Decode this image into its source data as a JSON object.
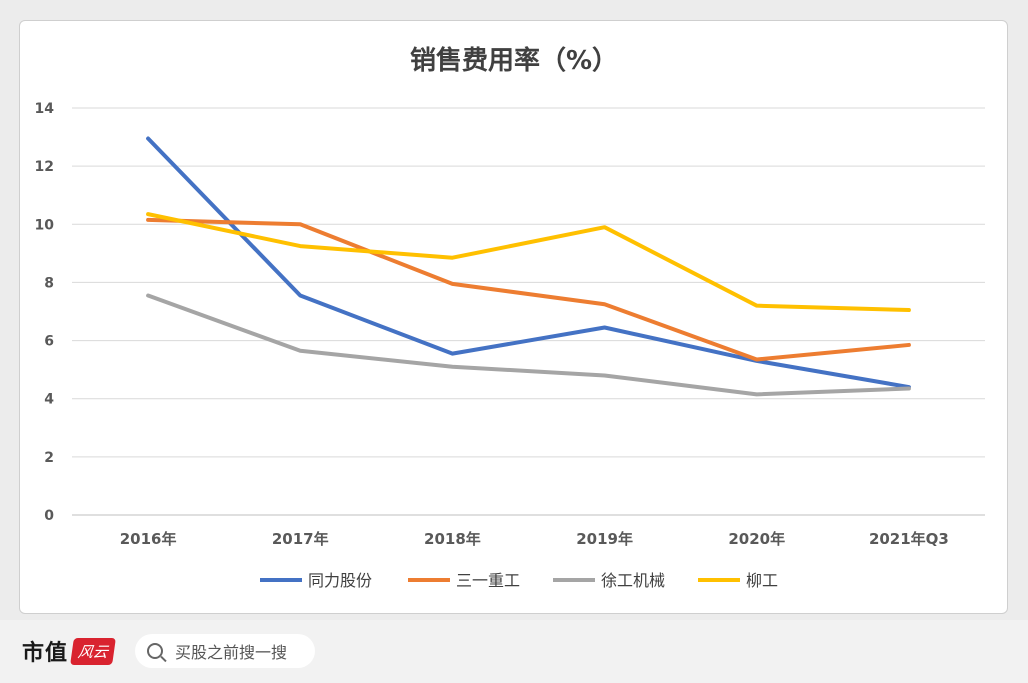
{
  "chart_data": {
    "type": "line",
    "title": "销售费用率（%）",
    "categories": [
      "2016年",
      "2017年",
      "2018年",
      "2019年",
      "2020年",
      "2021年Q3"
    ],
    "yticks": [
      "0",
      "2",
      "4",
      "6",
      "8",
      "10",
      "12",
      "14"
    ],
    "ylim": [
      0,
      14
    ],
    "grid": true,
    "legend_position": "bottom",
    "series": [
      {
        "name": "同力股份",
        "color": "#4472c4",
        "values": [
          12.95,
          7.55,
          5.55,
          6.45,
          5.3,
          4.4
        ]
      },
      {
        "name": "三一重工",
        "color": "#ed7d31",
        "values": [
          10.15,
          10.0,
          7.95,
          7.25,
          5.35,
          5.85
        ]
      },
      {
        "name": "徐工机械",
        "color": "#a5a5a5",
        "values": [
          7.55,
          5.65,
          5.1,
          4.8,
          4.15,
          4.35
        ]
      },
      {
        "name": "柳工",
        "color": "#ffc000",
        "values": [
          10.35,
          9.25,
          8.85,
          9.9,
          7.2,
          7.05
        ]
      }
    ]
  },
  "footer": {
    "brand": "市值",
    "brand_seal": "风云",
    "search_placeholder": "买股之前搜一搜"
  }
}
